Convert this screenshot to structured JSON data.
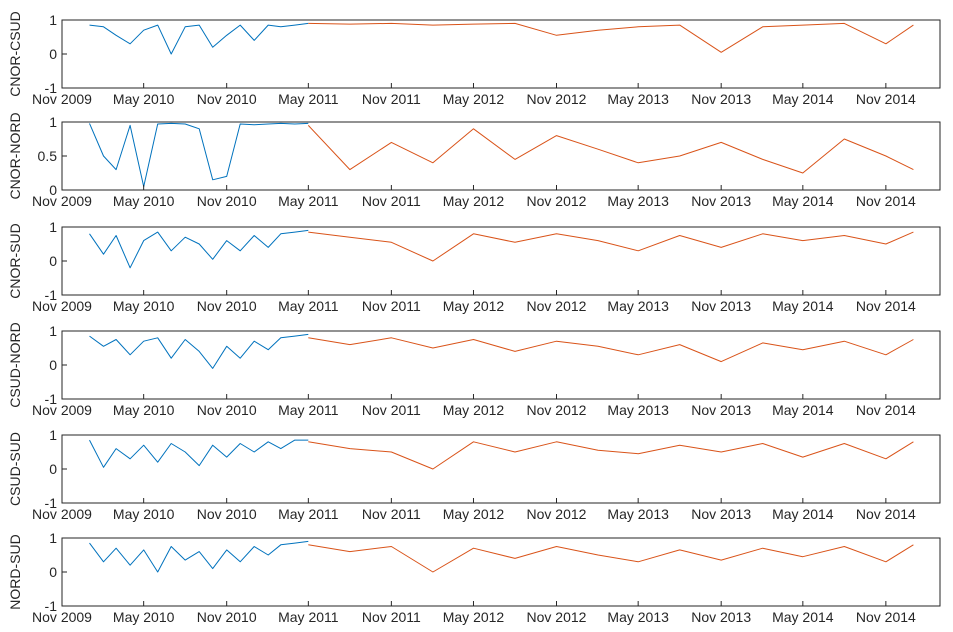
{
  "chart_data": [
    {
      "type": "line",
      "ylabel": "CNOR-CSUD",
      "ylim": [
        -1,
        1
      ],
      "yticks": [
        "-1",
        "0",
        "1"
      ],
      "xticks": [
        "Nov 2009",
        "May 2010",
        "Nov 2010",
        "May 2011",
        "Nov 2011",
        "May 2012",
        "Nov 2012",
        "May 2013",
        "Nov 2013",
        "May 2014",
        "Nov 2014"
      ],
      "series": [
        {
          "color": "#0072BD",
          "x": [
            "2010-01",
            "2010-02",
            "2010-03",
            "2010-04",
            "2010-05",
            "2010-06",
            "2010-07",
            "2010-08",
            "2010-09",
            "2010-10",
            "2010-11",
            "2010-12",
            "2011-01",
            "2011-02",
            "2011-03",
            "2011-04",
            "2011-05"
          ],
          "y": [
            0.85,
            0.8,
            0.55,
            0.3,
            0.7,
            0.85,
            0.0,
            0.8,
            0.85,
            0.2,
            0.55,
            0.85,
            0.4,
            0.85,
            0.8,
            0.85,
            0.9
          ]
        },
        {
          "color": "#D95319",
          "x": [
            "2011-05",
            "2011-08",
            "2011-11",
            "2012-02",
            "2012-05",
            "2012-08",
            "2012-11",
            "2013-02",
            "2013-05",
            "2013-08",
            "2013-11",
            "2014-02",
            "2014-05",
            "2014-08",
            "2014-11",
            "2015-01"
          ],
          "y": [
            0.9,
            0.88,
            0.9,
            0.85,
            0.88,
            0.9,
            0.55,
            0.7,
            0.8,
            0.85,
            0.05,
            0.8,
            0.85,
            0.9,
            0.3,
            0.85
          ]
        }
      ]
    },
    {
      "type": "line",
      "ylabel": "CNOR-NORD",
      "ylim": [
        0,
        1
      ],
      "yticks": [
        "0",
        "0.5",
        "1"
      ],
      "xticks": [
        "Nov 2009",
        "May 2010",
        "Nov 2010",
        "May 2011",
        "Nov 2011",
        "May 2012",
        "Nov 2012",
        "May 2013",
        "Nov 2013",
        "May 2014",
        "Nov 2014"
      ],
      "series": [
        {
          "color": "#0072BD",
          "x": [
            "2010-01",
            "2010-02",
            "2010-03",
            "2010-04",
            "2010-05",
            "2010-06",
            "2010-07",
            "2010-08",
            "2010-09",
            "2010-10",
            "2010-11",
            "2010-12",
            "2011-01",
            "2011-02",
            "2011-03",
            "2011-04",
            "2011-05"
          ],
          "y": [
            0.98,
            0.5,
            0.3,
            0.95,
            0.05,
            0.97,
            0.98,
            0.97,
            0.9,
            0.15,
            0.2,
            0.97,
            0.96,
            0.97,
            0.98,
            0.97,
            0.98
          ]
        },
        {
          "color": "#D95319",
          "x": [
            "2011-05",
            "2011-08",
            "2011-11",
            "2012-02",
            "2012-05",
            "2012-08",
            "2012-11",
            "2013-02",
            "2013-05",
            "2013-08",
            "2013-11",
            "2014-02",
            "2014-05",
            "2014-08",
            "2014-11",
            "2015-01"
          ],
          "y": [
            0.95,
            0.3,
            0.7,
            0.4,
            0.9,
            0.45,
            0.8,
            0.6,
            0.4,
            0.5,
            0.7,
            0.45,
            0.25,
            0.75,
            0.5,
            0.3
          ]
        }
      ]
    },
    {
      "type": "line",
      "ylabel": "CNOR-SUD",
      "ylim": [
        -1,
        1
      ],
      "yticks": [
        "-1",
        "0",
        "1"
      ],
      "xticks": [
        "Nov 2009",
        "May 2010",
        "Nov 2010",
        "May 2011",
        "Nov 2011",
        "May 2012",
        "Nov 2012",
        "May 2013",
        "Nov 2013",
        "May 2014",
        "Nov 2014"
      ],
      "series": [
        {
          "color": "#0072BD",
          "x": [
            "2010-01",
            "2010-02",
            "2010-03",
            "2010-04",
            "2010-05",
            "2010-06",
            "2010-07",
            "2010-08",
            "2010-09",
            "2010-10",
            "2010-11",
            "2010-12",
            "2011-01",
            "2011-02",
            "2011-03",
            "2011-04",
            "2011-05"
          ],
          "y": [
            0.8,
            0.2,
            0.75,
            -0.2,
            0.6,
            0.85,
            0.3,
            0.7,
            0.5,
            0.05,
            0.6,
            0.3,
            0.75,
            0.4,
            0.8,
            0.85,
            0.9
          ]
        },
        {
          "color": "#D95319",
          "x": [
            "2011-05",
            "2011-08",
            "2011-11",
            "2012-02",
            "2012-05",
            "2012-08",
            "2012-11",
            "2013-02",
            "2013-05",
            "2013-08",
            "2013-11",
            "2014-02",
            "2014-05",
            "2014-08",
            "2014-11",
            "2015-01"
          ],
          "y": [
            0.85,
            0.7,
            0.55,
            0.0,
            0.8,
            0.55,
            0.8,
            0.6,
            0.3,
            0.75,
            0.4,
            0.8,
            0.6,
            0.75,
            0.5,
            0.85
          ]
        }
      ]
    },
    {
      "type": "line",
      "ylabel": "CSUD-NORD",
      "ylim": [
        -1,
        1
      ],
      "yticks": [
        "-1",
        "0",
        "1"
      ],
      "xticks": [
        "Nov 2009",
        "May 2010",
        "Nov 2010",
        "May 2011",
        "Nov 2011",
        "May 2012",
        "Nov 2012",
        "May 2013",
        "Nov 2013",
        "May 2014",
        "Nov 2014"
      ],
      "series": [
        {
          "color": "#0072BD",
          "x": [
            "2010-01",
            "2010-02",
            "2010-03",
            "2010-04",
            "2010-05",
            "2010-06",
            "2010-07",
            "2010-08",
            "2010-09",
            "2010-10",
            "2010-11",
            "2010-12",
            "2011-01",
            "2011-02",
            "2011-03",
            "2011-04",
            "2011-05"
          ],
          "y": [
            0.85,
            0.55,
            0.75,
            0.3,
            0.7,
            0.8,
            0.2,
            0.75,
            0.4,
            -0.1,
            0.55,
            0.2,
            0.7,
            0.45,
            0.8,
            0.85,
            0.9
          ]
        },
        {
          "color": "#D95319",
          "x": [
            "2011-05",
            "2011-08",
            "2011-11",
            "2012-02",
            "2012-05",
            "2012-08",
            "2012-11",
            "2013-02",
            "2013-05",
            "2013-08",
            "2013-11",
            "2014-02",
            "2014-05",
            "2014-08",
            "2014-11",
            "2015-01"
          ],
          "y": [
            0.8,
            0.6,
            0.8,
            0.5,
            0.75,
            0.4,
            0.7,
            0.55,
            0.3,
            0.6,
            0.1,
            0.65,
            0.45,
            0.7,
            0.3,
            0.75
          ]
        }
      ]
    },
    {
      "type": "line",
      "ylabel": "CSUD-SUD",
      "ylim": [
        -1,
        1
      ],
      "yticks": [
        "-1",
        "0",
        "1"
      ],
      "xticks": [
        "Nov 2009",
        "May 2010",
        "Nov 2010",
        "May 2011",
        "Nov 2011",
        "May 2012",
        "Nov 2012",
        "May 2013",
        "Nov 2013",
        "May 2014",
        "Nov 2014"
      ],
      "series": [
        {
          "color": "#0072BD",
          "x": [
            "2010-01",
            "2010-02",
            "2010-03",
            "2010-04",
            "2010-05",
            "2010-06",
            "2010-07",
            "2010-08",
            "2010-09",
            "2010-10",
            "2010-11",
            "2010-12",
            "2011-01",
            "2011-02",
            "2011-03",
            "2011-04",
            "2011-05"
          ],
          "y": [
            0.85,
            0.05,
            0.6,
            0.3,
            0.7,
            0.2,
            0.75,
            0.5,
            0.1,
            0.7,
            0.35,
            0.75,
            0.5,
            0.8,
            0.6,
            0.85,
            0.85
          ]
        },
        {
          "color": "#D95319",
          "x": [
            "2011-05",
            "2011-08",
            "2011-11",
            "2012-02",
            "2012-05",
            "2012-08",
            "2012-11",
            "2013-02",
            "2013-05",
            "2013-08",
            "2013-11",
            "2014-02",
            "2014-05",
            "2014-08",
            "2014-11",
            "2015-01"
          ],
          "y": [
            0.8,
            0.6,
            0.5,
            0.0,
            0.8,
            0.5,
            0.8,
            0.55,
            0.45,
            0.7,
            0.5,
            0.75,
            0.35,
            0.75,
            0.3,
            0.8
          ]
        }
      ]
    },
    {
      "type": "line",
      "ylabel": "NORD-SUD",
      "ylim": [
        -1,
        1
      ],
      "yticks": [
        "-1",
        "0",
        "1"
      ],
      "xticks": [
        "Nov 2009",
        "May 2010",
        "Nov 2010",
        "May 2011",
        "Nov 2011",
        "May 2012",
        "Nov 2012",
        "May 2013",
        "Nov 2013",
        "May 2014",
        "Nov 2014"
      ],
      "series": [
        {
          "color": "#0072BD",
          "x": [
            "2010-01",
            "2010-02",
            "2010-03",
            "2010-04",
            "2010-05",
            "2010-06",
            "2010-07",
            "2010-08",
            "2010-09",
            "2010-10",
            "2010-11",
            "2010-12",
            "2011-01",
            "2011-02",
            "2011-03",
            "2011-04",
            "2011-05"
          ],
          "y": [
            0.85,
            0.3,
            0.7,
            0.2,
            0.65,
            0.0,
            0.75,
            0.35,
            0.6,
            0.1,
            0.65,
            0.3,
            0.75,
            0.5,
            0.8,
            0.85,
            0.9
          ]
        },
        {
          "color": "#D95319",
          "x": [
            "2011-05",
            "2011-08",
            "2011-11",
            "2012-02",
            "2012-05",
            "2012-08",
            "2012-11",
            "2013-02",
            "2013-05",
            "2013-08",
            "2013-11",
            "2014-02",
            "2014-05",
            "2014-08",
            "2014-11",
            "2015-01"
          ],
          "y": [
            0.8,
            0.6,
            0.75,
            0.0,
            0.7,
            0.4,
            0.75,
            0.5,
            0.3,
            0.65,
            0.35,
            0.7,
            0.45,
            0.75,
            0.3,
            0.8
          ]
        }
      ]
    }
  ]
}
